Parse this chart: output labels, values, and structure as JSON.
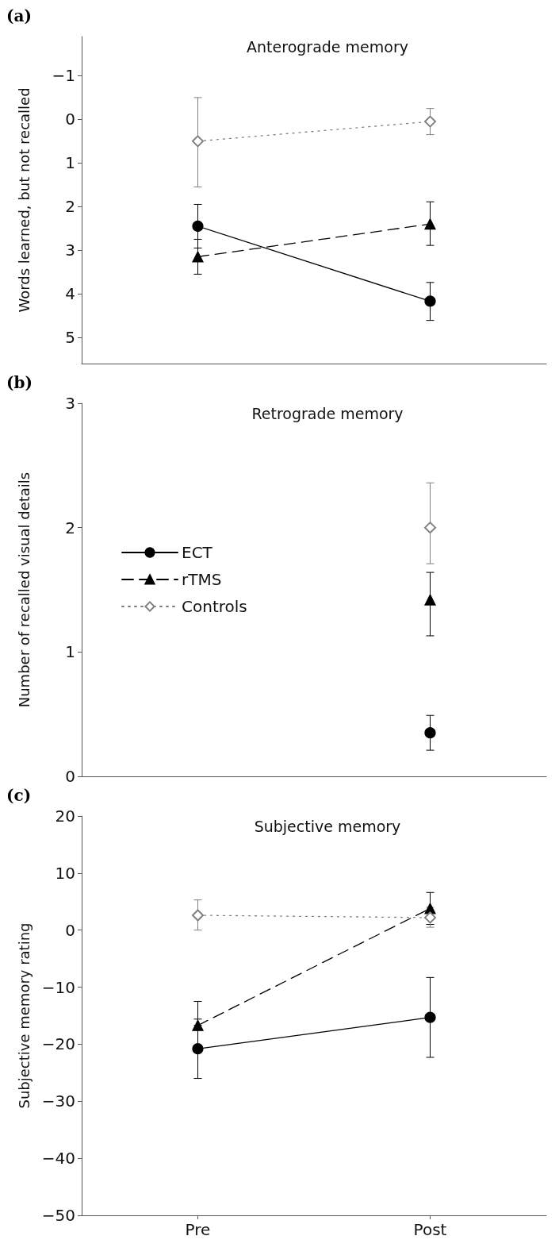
{
  "chart_data": [
    {
      "type": "line",
      "title": "Anterograde memory",
      "ylabel": "Words learned, but not recalled",
      "annotations": [
        "(a)"
      ],
      "categories": [
        null,
        null
      ],
      "ylim": [
        5.6,
        -1.9
      ],
      "yticks": [
        -1,
        0,
        1,
        2,
        3,
        4,
        5
      ],
      "tick_labels": "y",
      "grid": false,
      "legend": false,
      "series": [
        {
          "color": "#000000",
          "marker": "circle",
          "line_style": "solid",
          "values": [
            2.45,
            4.17
          ],
          "errors": [
            [
              1.95,
              2.95
            ],
            [
              3.74,
              4.61
            ]
          ]
        },
        {
          "color": "#000000",
          "marker": "triangle",
          "line_style": "dashed",
          "values": [
            3.15,
            2.4
          ],
          "errors": [
            [
              2.75,
              3.55
            ],
            [
              1.89,
              2.89
            ]
          ]
        },
        {
          "color": "#808080",
          "marker": "diamond",
          "line_style": "dotted",
          "values": [
            0.5,
            0.05
          ],
          "errors": [
            [
              -0.5,
              1.55
            ],
            [
              -0.25,
              0.35
            ]
          ]
        }
      ]
    },
    {
      "type": "line",
      "title": "Retrograde memory",
      "ylabel": "Number of recalled visual details",
      "annotations": [
        "(b)"
      ],
      "categories": [
        null,
        null
      ],
      "ylim": [
        0,
        3
      ],
      "yticks": [
        0,
        1,
        2,
        3
      ],
      "tick_labels": "y",
      "grid": false,
      "legend": "left",
      "series": [
        {
          "name": "ECT",
          "color": "#000000",
          "marker": "circle",
          "line_style": "solid",
          "values": [
            null,
            0.35
          ],
          "errors": [
            null,
            [
              0.21,
              0.49
            ]
          ]
        },
        {
          "name": "rTMS",
          "color": "#000000",
          "marker": "triangle",
          "line_style": "dashed",
          "values": [
            null,
            1.42
          ],
          "errors": [
            null,
            [
              1.13,
              1.64
            ]
          ]
        },
        {
          "name": "Controls",
          "color": "#808080",
          "marker": "diamond",
          "line_style": "dotted",
          "values": [
            null,
            2.0
          ],
          "errors": [
            null,
            [
              1.71,
              2.36
            ]
          ]
        }
      ]
    },
    {
      "type": "line",
      "title": "Subjective memory",
      "ylabel": "Subjective memory rating",
      "annotations": [
        "(c)"
      ],
      "categories": [
        "Pre",
        "Post"
      ],
      "ylim": [
        -50,
        20
      ],
      "yticks": [
        -50,
        -40,
        -30,
        -20,
        -10,
        0,
        10,
        20
      ],
      "grid": false,
      "legend": false,
      "series": [
        {
          "color": "#000000",
          "marker": "circle",
          "line_style": "solid",
          "values": [
            -20.8,
            -15.3
          ],
          "errors": [
            [
              -26,
              -15.6
            ],
            [
              -22.3,
              -8.3
            ]
          ]
        },
        {
          "color": "#000000",
          "marker": "triangle",
          "line_style": "dashed",
          "values": [
            -16.7,
            3.8
          ],
          "errors": [
            [
              -16.7,
              -12.5
            ],
            [
              1,
              6.6
            ]
          ]
        },
        {
          "color": "#808080",
          "marker": "diamond",
          "line_style": "dotted",
          "values": [
            2.6,
            2.2
          ],
          "errors": [
            [
              0,
              5.3
            ],
            [
              0.5,
              4
            ]
          ]
        }
      ]
    }
  ]
}
